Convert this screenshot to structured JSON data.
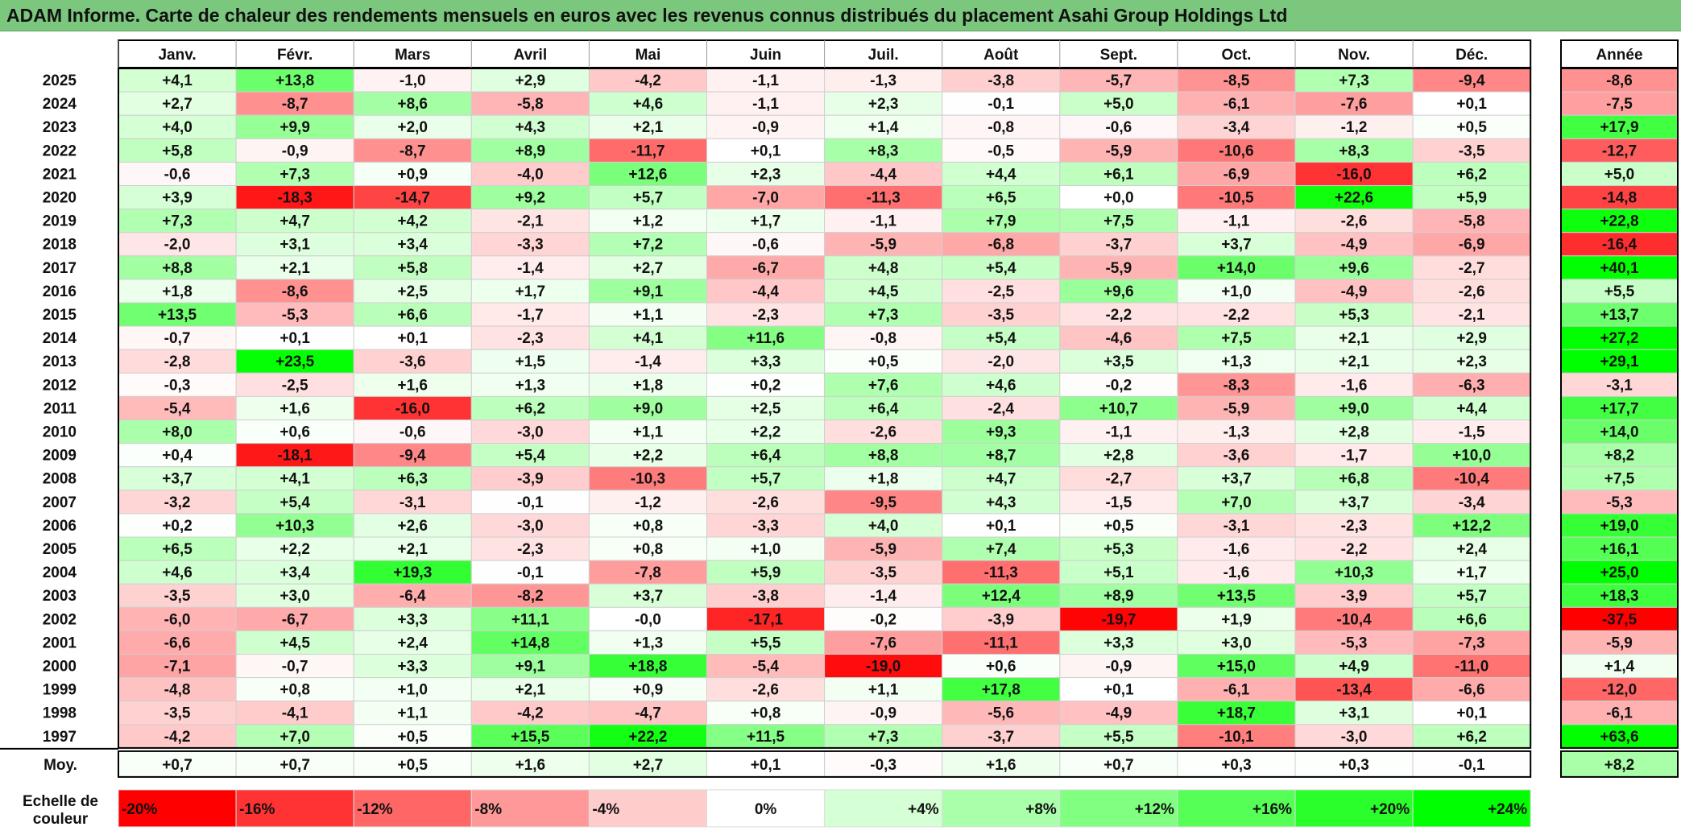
{
  "title": "ADAM Informe. Carte de chaleur des rendements mensuels en euros avec les revenus connus distribués du placement Asahi Group Holdings Ltd",
  "chart_data": {
    "type": "heatmap",
    "columns": [
      "Janv.",
      "Févr.",
      "Mars",
      "Avril",
      "Mai",
      "Juin",
      "Juil.",
      "Août",
      "Sept.",
      "Oct.",
      "Nov.",
      "Déc."
    ],
    "year_column_label": "Année",
    "average_row_label": "Moy.",
    "rows": [
      {
        "year": "2025",
        "months": [
          "+4,1",
          "+13,8",
          "-1,0",
          "+2,9",
          "-4,2",
          "-1,1",
          "-1,3",
          "-3,8",
          "-5,7",
          "-8,5",
          "+7,3",
          "-9,4"
        ],
        "annual": "-8,6"
      },
      {
        "year": "2024",
        "months": [
          "+2,7",
          "-8,7",
          "+8,6",
          "-5,8",
          "+4,6",
          "-1,1",
          "+2,3",
          "-0,1",
          "+5,0",
          "-6,1",
          "-7,6",
          "+0,1"
        ],
        "annual": "-7,5"
      },
      {
        "year": "2023",
        "months": [
          "+4,0",
          "+9,9",
          "+2,0",
          "+4,3",
          "+2,1",
          "-0,9",
          "+1,4",
          "-0,8",
          "-0,6",
          "-3,4",
          "-1,2",
          "+0,5"
        ],
        "annual": "+17,9"
      },
      {
        "year": "2022",
        "months": [
          "+5,8",
          "-0,9",
          "-8,7",
          "+8,9",
          "-11,7",
          "+0,1",
          "+8,3",
          "-0,5",
          "-5,9",
          "-10,6",
          "+8,3",
          "-3,5"
        ],
        "annual": "-12,7"
      },
      {
        "year": "2021",
        "months": [
          "-0,6",
          "+7,3",
          "+0,9",
          "-4,0",
          "+12,6",
          "+2,3",
          "-4,4",
          "+4,4",
          "+6,1",
          "-6,9",
          "-16,0",
          "+6,2"
        ],
        "annual": "+5,0"
      },
      {
        "year": "2020",
        "months": [
          "+3,9",
          "-18,3",
          "-14,7",
          "+9,2",
          "+5,7",
          "-7,0",
          "-11,3",
          "+6,5",
          "+0,0",
          "-10,5",
          "+22,6",
          "+5,9"
        ],
        "annual": "-14,8"
      },
      {
        "year": "2019",
        "months": [
          "+7,3",
          "+4,7",
          "+4,2",
          "-2,1",
          "+1,2",
          "+1,7",
          "-1,1",
          "+7,9",
          "+7,5",
          "-1,1",
          "-2,6",
          "-5,8"
        ],
        "annual": "+22,8"
      },
      {
        "year": "2018",
        "months": [
          "-2,0",
          "+3,1",
          "+3,4",
          "-3,3",
          "+7,2",
          "-0,6",
          "-5,9",
          "-6,8",
          "-3,7",
          "+3,7",
          "-4,9",
          "-6,9"
        ],
        "annual": "-16,4"
      },
      {
        "year": "2017",
        "months": [
          "+8,8",
          "+2,1",
          "+5,8",
          "-1,4",
          "+2,7",
          "-6,7",
          "+4,8",
          "+5,4",
          "-5,9",
          "+14,0",
          "+9,6",
          "-2,7"
        ],
        "annual": "+40,1"
      },
      {
        "year": "2016",
        "months": [
          "+1,8",
          "-8,6",
          "+2,5",
          "+1,7",
          "+9,1",
          "-4,4",
          "+4,5",
          "-2,5",
          "+9,6",
          "+1,0",
          "-4,9",
          "-2,6"
        ],
        "annual": "+5,5"
      },
      {
        "year": "2015",
        "months": [
          "+13,5",
          "-5,3",
          "+6,6",
          "-1,7",
          "+1,1",
          "-2,3",
          "+7,3",
          "-3,5",
          "-2,2",
          "-2,2",
          "+5,3",
          "-2,1"
        ],
        "annual": "+13,7"
      },
      {
        "year": "2014",
        "months": [
          "-0,7",
          "+0,1",
          "+0,1",
          "-2,3",
          "+4,1",
          "+11,6",
          "-0,8",
          "+5,4",
          "-4,6",
          "+7,5",
          "+2,1",
          "+2,9"
        ],
        "annual": "+27,2"
      },
      {
        "year": "2013",
        "months": [
          "-2,8",
          "+23,5",
          "-3,6",
          "+1,5",
          "-1,4",
          "+3,3",
          "+0,5",
          "-2,0",
          "+3,5",
          "+1,3",
          "+2,1",
          "+2,3"
        ],
        "annual": "+29,1"
      },
      {
        "year": "2012",
        "months": [
          "-0,3",
          "-2,5",
          "+1,6",
          "+1,3",
          "+1,8",
          "+0,2",
          "+7,6",
          "+4,6",
          "-0,2",
          "-8,3",
          "-1,6",
          "-6,3"
        ],
        "annual": "-3,1"
      },
      {
        "year": "2011",
        "months": [
          "-5,4",
          "+1,6",
          "-16,0",
          "+6,2",
          "+9,0",
          "+2,5",
          "+6,4",
          "-2,4",
          "+10,7",
          "-5,9",
          "+9,0",
          "+4,4"
        ],
        "annual": "+17,7"
      },
      {
        "year": "2010",
        "months": [
          "+8,0",
          "+0,6",
          "-0,6",
          "-3,0",
          "+1,1",
          "+2,2",
          "-2,6",
          "+9,3",
          "-1,1",
          "-1,3",
          "+2,8",
          "-1,5"
        ],
        "annual": "+14,0"
      },
      {
        "year": "2009",
        "months": [
          "+0,4",
          "-18,1",
          "-9,4",
          "+5,4",
          "+2,2",
          "+6,4",
          "+8,8",
          "+8,7",
          "+2,8",
          "-3,6",
          "-1,7",
          "+10,0"
        ],
        "annual": "+8,2"
      },
      {
        "year": "2008",
        "months": [
          "+3,7",
          "+4,1",
          "+6,3",
          "-3,9",
          "-10,3",
          "+5,7",
          "+1,8",
          "+4,7",
          "-2,7",
          "+3,7",
          "+6,8",
          "-10,4"
        ],
        "annual": "+7,5"
      },
      {
        "year": "2007",
        "months": [
          "-3,2",
          "+5,4",
          "-3,1",
          "-0,1",
          "-1,2",
          "-2,6",
          "-9,5",
          "+4,3",
          "-1,5",
          "+7,0",
          "+3,7",
          "-3,4"
        ],
        "annual": "-5,3"
      },
      {
        "year": "2006",
        "months": [
          "+0,2",
          "+10,3",
          "+2,6",
          "-3,0",
          "+0,8",
          "-3,3",
          "+4,0",
          "+0,1",
          "+0,5",
          "-3,1",
          "-2,3",
          "+12,2"
        ],
        "annual": "+19,0"
      },
      {
        "year": "2005",
        "months": [
          "+6,5",
          "+2,2",
          "+2,1",
          "-2,3",
          "+0,8",
          "+1,0",
          "-5,9",
          "+7,4",
          "+5,3",
          "-1,6",
          "-2,2",
          "+2,4"
        ],
        "annual": "+16,1"
      },
      {
        "year": "2004",
        "months": [
          "+4,6",
          "+3,4",
          "+19,3",
          "-0,1",
          "-7,8",
          "+5,9",
          "-3,5",
          "-11,3",
          "+5,1",
          "-1,6",
          "+10,3",
          "+1,7"
        ],
        "annual": "+25,0"
      },
      {
        "year": "2003",
        "months": [
          "-3,5",
          "+3,0",
          "-6,4",
          "-8,2",
          "+3,7",
          "-3,8",
          "-1,4",
          "+12,4",
          "+8,9",
          "+13,5",
          "-3,9",
          "+5,7"
        ],
        "annual": "+18,3"
      },
      {
        "year": "2002",
        "months": [
          "-6,0",
          "-6,7",
          "+3,3",
          "+11,1",
          "-0,0",
          "-17,1",
          "-0,2",
          "-3,9",
          "-19,7",
          "+1,9",
          "-10,4",
          "+6,6"
        ],
        "annual": "-37,5"
      },
      {
        "year": "2001",
        "months": [
          "-6,6",
          "+4,5",
          "+2,4",
          "+14,8",
          "+1,3",
          "+5,5",
          "-7,6",
          "-11,1",
          "+3,3",
          "+3,0",
          "-5,3",
          "-7,3"
        ],
        "annual": "-5,9"
      },
      {
        "year": "2000",
        "months": [
          "-7,1",
          "-0,7",
          "+3,3",
          "+9,1",
          "+18,8",
          "-5,4",
          "-19,0",
          "+0,6",
          "-0,9",
          "+15,0",
          "+4,9",
          "-11,0"
        ],
        "annual": "+1,4"
      },
      {
        "year": "1999",
        "months": [
          "-4,8",
          "+0,8",
          "+1,0",
          "+2,1",
          "+0,9",
          "-2,6",
          "+1,1",
          "+17,8",
          "+0,1",
          "-6,1",
          "-13,4",
          "-6,6"
        ],
        "annual": "-12,0"
      },
      {
        "year": "1998",
        "months": [
          "-3,5",
          "-4,1",
          "+1,1",
          "-4,2",
          "-4,7",
          "+0,8",
          "-0,9",
          "-5,6",
          "-4,9",
          "+18,7",
          "+3,1",
          "+0,1"
        ],
        "annual": "-6,1"
      },
      {
        "year": "1997",
        "months": [
          "-4,2",
          "+7,0",
          "+0,5",
          "+15,5",
          "+22,2",
          "+11,5",
          "+7,3",
          "-3,7",
          "+5,5",
          "-10,1",
          "-3,0",
          "+6,2"
        ],
        "annual": "+63,6"
      }
    ],
    "averages": {
      "months": [
        "+0,7",
        "+0,7",
        "+0,5",
        "+1,6",
        "+2,7",
        "+0,1",
        "-0,3",
        "+1,6",
        "+0,7",
        "+0,3",
        "+0,3",
        "-0,1"
      ],
      "annual": "+8,2"
    },
    "color_scale": {
      "label": "Echelle de couleur",
      "stops": [
        {
          "label": "-20%",
          "value": -20
        },
        {
          "label": "-16%",
          "value": -16
        },
        {
          "label": "-12%",
          "value": -12
        },
        {
          "label": "-8%",
          "value": -8
        },
        {
          "label": "-4%",
          "value": -4
        },
        {
          "label": "0%",
          "value": 0
        },
        {
          "label": "+4%",
          "value": 4
        },
        {
          "label": "+8%",
          "value": 8
        },
        {
          "label": "+12%",
          "value": 12
        },
        {
          "label": "+16%",
          "value": 16
        },
        {
          "label": "+20%",
          "value": 20
        },
        {
          "label": "+24%",
          "value": 24
        }
      ]
    },
    "colors": {
      "negative_max": "#ff0000",
      "zero": "#ffffff",
      "positive_max": "#00ff00",
      "title_background": "#7bc77e"
    }
  }
}
